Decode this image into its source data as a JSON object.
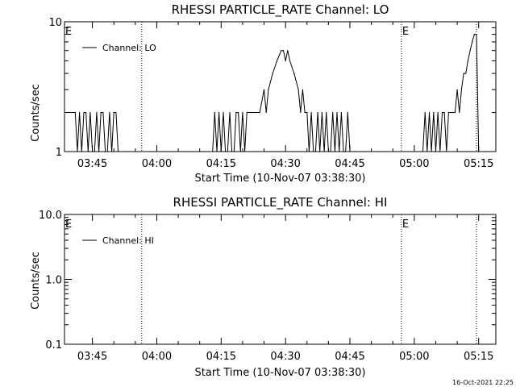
{
  "footer": {
    "timestamp": "16-Oct-2021 22:25"
  },
  "chart_data": [
    {
      "type": "line",
      "title": "RHESSI PARTICLE_RATE Channel: LO",
      "xlabel": "Start Time (10-Nov-07 03:38:30)",
      "ylabel": "Counts/sec",
      "yscale": "log",
      "ylim": [
        1,
        10
      ],
      "ytick_labels": [
        "1",
        "10"
      ],
      "xlim": [
        "03:38:30",
        "05:19:00"
      ],
      "xtick_labels": [
        "03:45",
        "04:00",
        "04:15",
        "04:30",
        "04:45",
        "05:00",
        "05:15"
      ],
      "legend": {
        "placement": "top-left",
        "entries": [
          "Channel: LO"
        ]
      },
      "annotations": [
        "E",
        "E"
      ],
      "vlines": [
        "03:56:30",
        "04:57:00",
        "05:14:30"
      ],
      "series": [
        {
          "name": "Channel: LO",
          "x": [
            "03:38:30",
            "03:39:00",
            "03:41:00",
            "03:41:30",
            "03:42:00",
            "03:42:30",
            "03:43:00",
            "03:43:30",
            "03:44:00",
            "03:44:30",
            "03:45:00",
            "03:45:30",
            "03:46:00",
            "03:46:30",
            "03:47:00",
            "03:47:30",
            "03:48:00",
            "03:48:30",
            "03:49:00",
            "03:49:30",
            "03:50:00",
            "03:50:30",
            "03:51:00",
            "04:10:00",
            "04:13:00",
            "04:13:30",
            "04:14:00",
            "04:14:30",
            "04:15:00",
            "04:15:30",
            "04:16:00",
            "04:16:30",
            "04:17:00",
            "04:17:30",
            "04:18:00",
            "04:18:30",
            "04:19:00",
            "04:19:30",
            "04:20:00",
            "04:20:30",
            "04:21:00",
            "04:21:30",
            "04:22:00",
            "04:23:00",
            "04:24:00",
            "04:25:00",
            "04:25:30",
            "04:26:00",
            "04:27:00",
            "04:28:00",
            "04:29:00",
            "04:29:30",
            "04:30:00",
            "04:30:30",
            "04:31:00",
            "04:32:00",
            "04:33:00",
            "04:33:30",
            "04:34:00",
            "04:34:30",
            "04:35:00",
            "04:35:30",
            "04:36:00",
            "04:36:30",
            "04:37:00",
            "04:37:30",
            "04:38:00",
            "04:38:30",
            "04:39:00",
            "04:39:30",
            "04:40:00",
            "04:40:30",
            "04:41:00",
            "04:41:30",
            "04:42:00",
            "04:42:30",
            "04:43:00",
            "04:43:30",
            "04:44:00",
            "04:44:30",
            "04:45:00",
            "04:45:30",
            "04:46:00",
            "05:02:00",
            "05:02:30",
            "05:03:00",
            "05:03:30",
            "05:04:00",
            "05:04:30",
            "05:05:00",
            "05:05:30",
            "05:06:00",
            "05:06:30",
            "05:07:00",
            "05:07:30",
            "05:08:00",
            "05:08:30",
            "05:09:00",
            "05:09:30",
            "05:10:00",
            "05:10:30",
            "05:11:00",
            "05:11:30",
            "05:12:00",
            "05:12:30",
            "05:13:00",
            "05:13:30",
            "05:14:00",
            "05:14:30",
            "05:15:00"
          ],
          "values": [
            2,
            2,
            2,
            1,
            2,
            1,
            2,
            2,
            1,
            2,
            1,
            1,
            2,
            1,
            2,
            2,
            1,
            1,
            2,
            1,
            2,
            2,
            1,
            1,
            1,
            2,
            1,
            2,
            1,
            2,
            1,
            1,
            2,
            1,
            1,
            2,
            2,
            1,
            2,
            1,
            2,
            2,
            2,
            2,
            2,
            3,
            2,
            3,
            4,
            5,
            6,
            6,
            5,
            6,
            5,
            4,
            3,
            2,
            3,
            2,
            2,
            1,
            2,
            1,
            1,
            2,
            1,
            2,
            1,
            2,
            1,
            1,
            2,
            1,
            2,
            1,
            2,
            1,
            1,
            2,
            1,
            1,
            1,
            1,
            2,
            1,
            2,
            1,
            2,
            1,
            2,
            1,
            2,
            2,
            1,
            2,
            2,
            2,
            2,
            3,
            2,
            3,
            4,
            4,
            5,
            6,
            7,
            8,
            8,
            1
          ]
        }
      ]
    },
    {
      "type": "line",
      "title": "RHESSI PARTICLE_RATE Channel: HI",
      "xlabel": "Start Time (10-Nov-07 03:38:30)",
      "ylabel": "Counts/sec",
      "yscale": "log",
      "ylim": [
        0.1,
        10
      ],
      "ytick_labels": [
        "0.1",
        "1.0",
        "10.0"
      ],
      "xlim": [
        "03:38:30",
        "05:19:00"
      ],
      "xtick_labels": [
        "03:45",
        "04:00",
        "04:15",
        "04:30",
        "04:45",
        "05:00",
        "05:15"
      ],
      "legend": {
        "placement": "top-left",
        "entries": [
          "Channel: HI"
        ]
      },
      "annotations": [
        "E",
        "E"
      ],
      "vlines": [
        "03:56:30",
        "04:57:00",
        "05:14:30"
      ],
      "series": [
        {
          "name": "Channel: HI",
          "x": [],
          "values": []
        }
      ]
    }
  ]
}
